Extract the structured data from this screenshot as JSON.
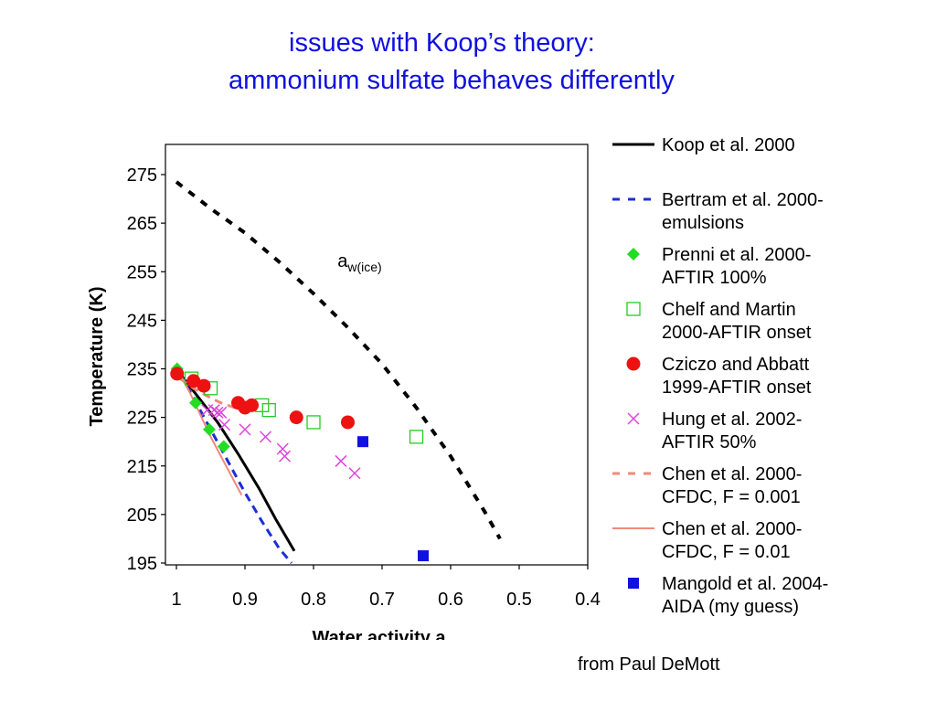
{
  "slide": {
    "title_line1": "issues with Koop’s theory:",
    "title_line2": "ammonium sulfate behaves differently",
    "credit": "from Paul DeMott"
  },
  "chart_data": {
    "type": "scatter",
    "xlabel_main": "Water activity a",
    "xlabel_sub": "w",
    "ylabel": "Temperature (K)",
    "xlim": [
      1,
      0.4
    ],
    "ylim": [
      195,
      280
    ],
    "xticks": [
      "1",
      "0.9",
      "0.8",
      "0.7",
      "0.6",
      "0.5",
      "0.4"
    ],
    "xtick_values": [
      1,
      0.9,
      0.8,
      0.7,
      0.6,
      0.5,
      0.4
    ],
    "yticks": [
      "275",
      "265",
      "255",
      "245",
      "235",
      "225",
      "215",
      "205",
      "195"
    ],
    "ytick_values": [
      275,
      265,
      255,
      245,
      235,
      225,
      215,
      205,
      195
    ],
    "annotation": {
      "main": "a",
      "sub": "w(ice)",
      "x": 0.765,
      "y": 256
    },
    "aw_ice_line": {
      "color": "#000000",
      "style": "dashed-black",
      "x": [
        1.0,
        0.95,
        0.9,
        0.85,
        0.8,
        0.75,
        0.7,
        0.65,
        0.6,
        0.55,
        0.528
      ],
      "y": [
        273.5,
        268,
        263,
        257,
        250.5,
        243.5,
        236,
        227,
        217,
        205.5,
        200
      ]
    },
    "legend": [
      {
        "label_l1": "Koop et al. 2000",
        "label_l2": "",
        "marker": "line-solid",
        "color": "#000000"
      },
      {
        "label_l1": "Bertram et al. 2000-",
        "label_l2": "emulsions",
        "marker": "line-dashed",
        "color": "#1a2fd6"
      },
      {
        "label_l1": "Prenni et al. 2000-",
        "label_l2": "AFTIR 100%",
        "marker": "diamond",
        "color": "#22dd22"
      },
      {
        "label_l1": "Chelf and Martin",
        "label_l2": "2000-AFTIR onset",
        "marker": "open-square",
        "color": "#22cc22"
      },
      {
        "label_l1": "Cziczo and Abbatt",
        "label_l2": "1999-AFTIR onset",
        "marker": "circle",
        "color": "#ee1111"
      },
      {
        "label_l1": "Hung et al. 2002-",
        "label_l2": "AFTIR 50%",
        "marker": "x",
        "color": "#dd44dd"
      },
      {
        "label_l1": "Chen et al. 2000-",
        "label_l2": "CFDC, F = 0.001",
        "marker": "line-dashed",
        "color": "#f08a7a"
      },
      {
        "label_l1": "Chen et al. 2000-",
        "label_l2": "CFDC, F = 0.01",
        "marker": "line-solid",
        "color": "#f08a7a"
      },
      {
        "label_l1": "Mangold et al. 2004-",
        "label_l2": "AIDA (my guess)",
        "marker": "square",
        "color": "#1010e0"
      }
    ],
    "series": [
      {
        "name": "Koop et al. 2000",
        "kind": "line",
        "dash": false,
        "width": 3,
        "color": "#000000",
        "x": [
          0.995,
          0.97,
          0.94,
          0.91,
          0.88,
          0.855,
          0.828
        ],
        "y": [
          234,
          229.5,
          224,
          217.5,
          210.5,
          204,
          197.5
        ]
      },
      {
        "name": "Bertram et al. 2000-emulsions",
        "kind": "line",
        "dash": true,
        "width": 3,
        "color": "#1a2fd6",
        "x": [
          0.995,
          0.975,
          0.95,
          0.925,
          0.9,
          0.875,
          0.85,
          0.832
        ],
        "y": [
          234,
          229,
          222.5,
          216,
          209.5,
          203.5,
          198,
          195
        ]
      },
      {
        "name": "Chen et al. 2000-CFDC, F = 0.001",
        "kind": "line",
        "dash": true,
        "width": 3,
        "color": "#f08a7a",
        "x": [
          0.995,
          0.975,
          0.95,
          0.935,
          0.915
        ],
        "y": [
          233,
          231,
          229,
          228,
          227
        ]
      },
      {
        "name": "Chen et al. 2000-CFDC, F = 0.01",
        "kind": "line",
        "dash": false,
        "width": 2,
        "color": "#f08a7a",
        "x": [
          0.995,
          0.98,
          0.965,
          0.95,
          0.935,
          0.92,
          0.905
        ],
        "y": [
          234,
          230,
          225.5,
          221,
          217,
          213,
          209
        ]
      },
      {
        "name": "Prenni et al. 2000-AFTIR 100%",
        "kind": "diamond",
        "color": "#22dd22",
        "x": [
          0.999,
          0.972,
          0.952,
          0.931
        ],
        "y": [
          235,
          228,
          222.5,
          219
        ]
      },
      {
        "name": "Chelf and Martin 2000-AFTIR onset",
        "kind": "open-square",
        "color": "#22cc22",
        "x": [
          0.978,
          0.95,
          0.875,
          0.865,
          0.8,
          0.65
        ],
        "y": [
          233,
          231,
          227.5,
          226.5,
          224,
          221
        ]
      },
      {
        "name": "Cziczo and Abbatt 1999-AFTIR onset",
        "kind": "circle",
        "color": "#ee1111",
        "x": [
          0.999,
          0.975,
          0.96,
          0.91,
          0.9,
          0.89,
          0.825,
          0.75
        ],
        "y": [
          234,
          232.5,
          231.5,
          228,
          227,
          227.5,
          225,
          224
        ]
      },
      {
        "name": "Hung et al. 2002-AFTIR 50%",
        "kind": "x",
        "color": "#dd44dd",
        "x": [
          0.955,
          0.945,
          0.94,
          0.935,
          0.93,
          0.9,
          0.87,
          0.845,
          0.842,
          0.76,
          0.74
        ],
        "y": [
          226.5,
          226.5,
          226,
          226,
          223.5,
          222.5,
          221,
          218.5,
          217,
          216,
          213.5
        ]
      },
      {
        "name": "Mangold et al. 2004-AIDA (my guess)",
        "kind": "square",
        "color": "#1010e0",
        "x": [
          0.728,
          0.64
        ],
        "y": [
          220,
          196.5
        ]
      }
    ]
  }
}
